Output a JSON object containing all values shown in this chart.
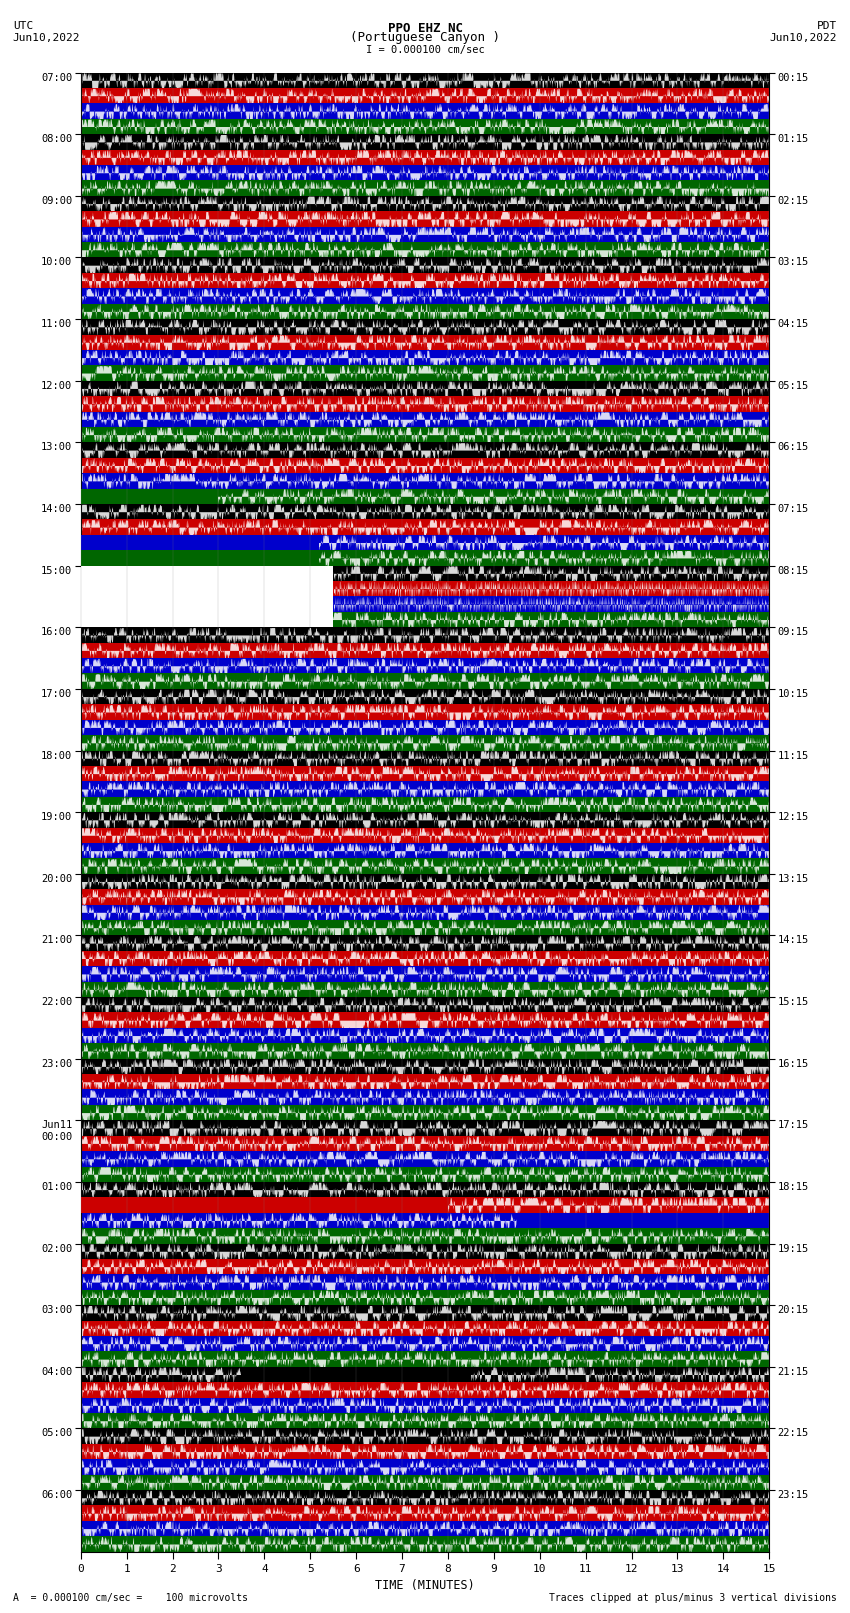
{
  "title_line1": "PPO EHZ NC",
  "title_line2": "(Portuguese Canyon )",
  "title_line3": "I = 0.000100 cm/sec",
  "left_label_line1": "UTC",
  "left_label_line2": "Jun10,2022",
  "right_label_line1": "PDT",
  "right_label_line2": "Jun10,2022",
  "xlabel": "TIME (MINUTES)",
  "footer_left": "A  = 0.000100 cm/sec =    100 microvolts",
  "footer_right": "Traces clipped at plus/minus 3 vertical divisions",
  "utc_times": [
    "07:00",
    "08:00",
    "09:00",
    "10:00",
    "11:00",
    "12:00",
    "13:00",
    "14:00",
    "15:00",
    "16:00",
    "17:00",
    "18:00",
    "19:00",
    "20:00",
    "21:00",
    "22:00",
    "23:00",
    "Jun11\n00:00",
    "01:00",
    "02:00",
    "03:00",
    "04:00",
    "05:00",
    "06:00"
  ],
  "pdt_times": [
    "00:15",
    "01:15",
    "02:15",
    "03:15",
    "04:15",
    "05:15",
    "06:15",
    "07:15",
    "08:15",
    "09:15",
    "10:15",
    "11:15",
    "12:15",
    "13:15",
    "14:15",
    "15:15",
    "16:15",
    "17:15",
    "18:15",
    "19:15",
    "20:15",
    "21:15",
    "22:15",
    "23:15"
  ],
  "n_hours": 24,
  "n_bands": 4,
  "xmin": 0,
  "xmax": 15,
  "bg_colors": [
    "#000000",
    "#cc0000",
    "#0000cc",
    "#006600"
  ],
  "noise_amplitude": 0.38,
  "seed": 12345
}
